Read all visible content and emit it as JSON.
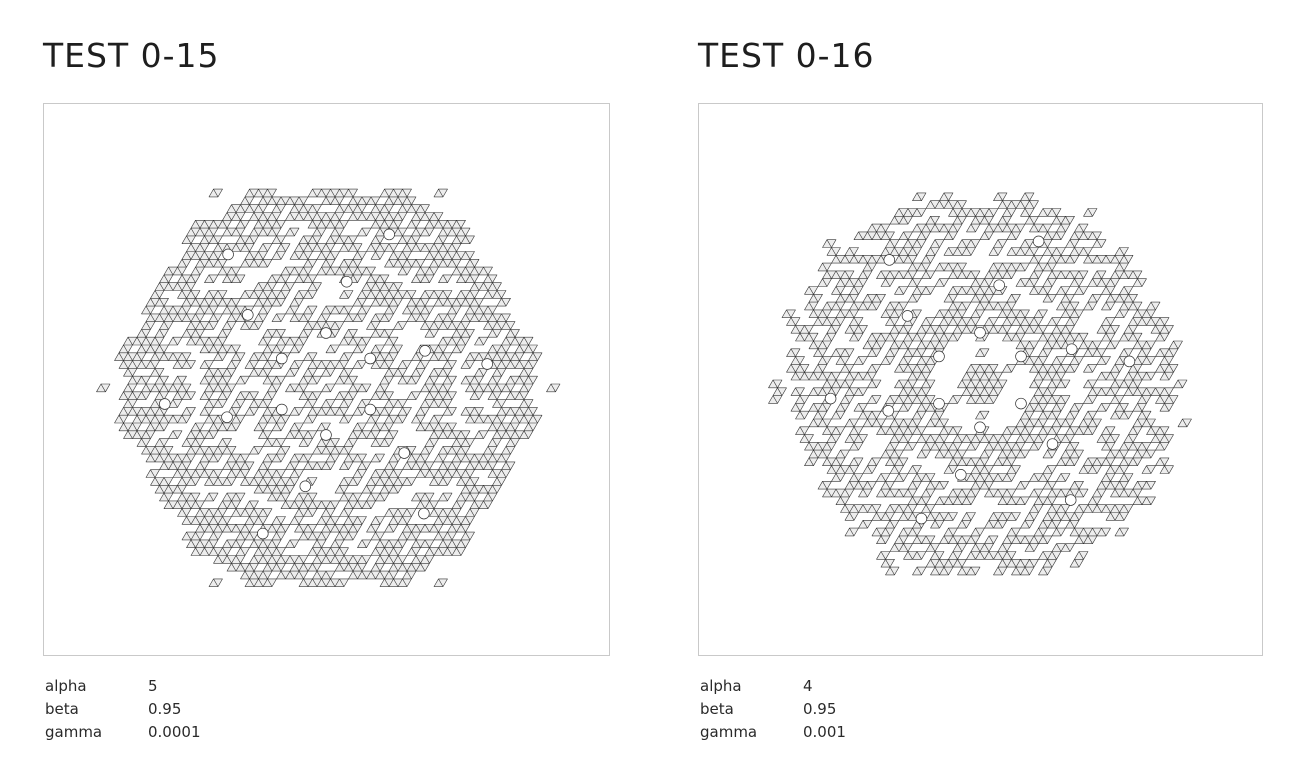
{
  "panels": [
    {
      "title": "TEST 0-15",
      "params": [
        {
          "key": "alpha",
          "value": "5"
        },
        {
          "key": "beta",
          "value": "0.95"
        },
        {
          "key": "gamma",
          "value": "0.0001"
        }
      ],
      "pattern": {
        "shape": "hexagon",
        "density": 0.66,
        "seed": 15
      }
    },
    {
      "title": "TEST 0-16",
      "params": [
        {
          "key": "alpha",
          "value": "4"
        },
        {
          "key": "beta",
          "value": "0.95"
        },
        {
          "key": "gamma",
          "value": "0.001"
        }
      ],
      "pattern": {
        "shape": "round",
        "density": 0.6,
        "seed": 16
      }
    }
  ]
}
